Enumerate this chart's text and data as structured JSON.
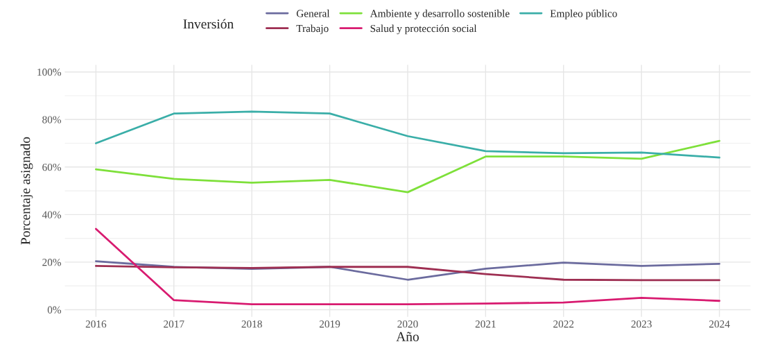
{
  "chart_data": {
    "type": "line",
    "xlabel": "Año",
    "ylabel": "Porcentaje asignado",
    "legend_title": "Inversión",
    "legend": "top",
    "x": [
      2016,
      2017,
      2018,
      2019,
      2020,
      2021,
      2022,
      2023,
      2024
    ],
    "xlim": [
      2015.6,
      2024.4
    ],
    "xticks": [
      2016,
      2017,
      2018,
      2019,
      2020,
      2021,
      2022,
      2023,
      2024
    ],
    "ylim": [
      -3,
      103
    ],
    "yticks": [
      {
        "value": 0,
        "label": "0%"
      },
      {
        "value": 20,
        "label": "20%"
      },
      {
        "value": 40,
        "label": "40%"
      },
      {
        "value": 60,
        "label": "60%"
      },
      {
        "value": 80,
        "label": "80%"
      },
      {
        "value": 100,
        "label": "100%"
      }
    ],
    "grid": true,
    "marker": "none",
    "line_style": "solid",
    "series": [
      {
        "name": "General",
        "color": "#6b6b9e",
        "values": [
          20.4,
          18,
          17.2,
          18,
          12.6,
          17.2,
          19.8,
          18.4,
          19.3
        ]
      },
      {
        "name": "Ambiente y desarrollo sostenible",
        "color": "#7ee03a",
        "values": [
          59,
          55,
          53.4,
          54.6,
          49.4,
          64.4,
          64.4,
          63.5,
          71
        ]
      },
      {
        "name": "Empleo público",
        "color": "#3aaea8",
        "values": [
          70,
          82.5,
          83.3,
          82.5,
          73,
          66.7,
          65.8,
          66.1,
          64
        ]
      },
      {
        "name": "Trabajo",
        "color": "#9e2f52",
        "values": [
          18.4,
          17.8,
          17.5,
          18,
          18,
          15,
          12.6,
          12.4,
          12.4
        ]
      },
      {
        "name": "Salud y protección social",
        "color": "#d81b70",
        "values": [
          34,
          4,
          2.3,
          2.3,
          2.3,
          2.6,
          3,
          5,
          3.7
        ]
      }
    ]
  }
}
